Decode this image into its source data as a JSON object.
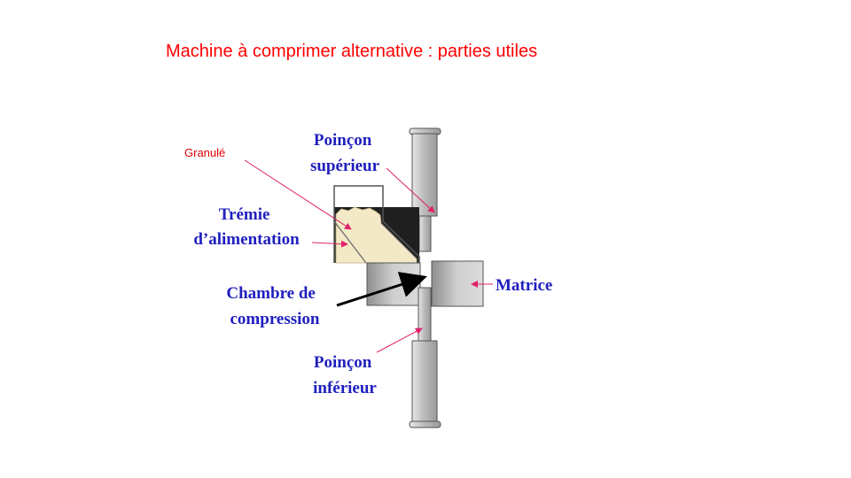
{
  "title": "Machine à comprimer alternative : parties utiles",
  "colors": {
    "title": "#ff0000",
    "labels": "#1f1fbf",
    "granule_label": "#e00000",
    "leader_lines": "#e0206a",
    "arrow": "#000000",
    "metal": "#c4c4c4",
    "hopper_dark": "#1f1f1f",
    "granule": "#f3e9c7"
  },
  "labels": {
    "granule": "Granulé",
    "poincon_superieur": [
      "Poinçon",
      "supérieur"
    ],
    "tremie": [
      "Trémie",
      "d’alimentation"
    ],
    "chambre": [
      "Chambre de",
      "compression"
    ],
    "matrice": "Matrice",
    "poincon_inferieur": [
      "Poinçon",
      "inférieur"
    ]
  }
}
